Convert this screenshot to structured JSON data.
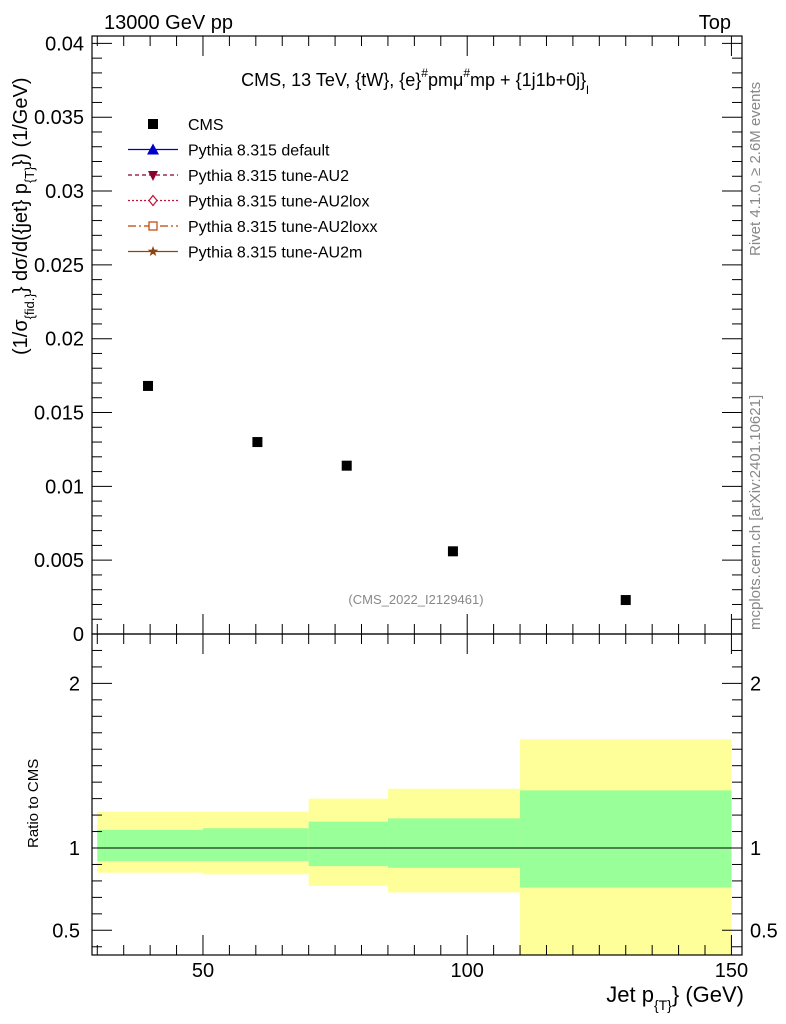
{
  "header": {
    "left": "13000 GeV pp",
    "right": "Top"
  },
  "side": {
    "rivet": "Rivet 4.1.0, ≥ 2.6M events",
    "mcplots": "mcplots.cern.ch [arXiv:2401.10621]"
  },
  "chart_data": {
    "type": "scatter",
    "title": "CMS, 13 TeV, {tW}, {e}#pmμ#mp + {1j1b+0j}_l",
    "title_parts": {
      "main": "CMS, 13 TeV, {tW}, {e}",
      "sup1": "#",
      "mid": "pmμ",
      "sup2": "#",
      "end": "mp + {1j1b+0j}",
      "sub": "l"
    },
    "analysis_id": "(CMS_2022_I2129461)",
    "xlabel": "Jet p_{T} (GeV)",
    "xlabel_parts": {
      "main": "Jet p",
      "sub": "{T}",
      "end": "} (GeV)"
    },
    "ylabel": "(1/σ_{fid.}) dσ/d({jet} p_{T}) (1/GeV)",
    "ylabel_parts": {
      "a": "(1/σ",
      "asub": "{fid.}",
      "b": "} dσ/d({jet} p",
      "bsub": "{T}",
      "c": "}) (1/GeV)"
    },
    "ratio_ylabel": "Ratio to CMS",
    "xlim": [
      29,
      152
    ],
    "ylim": [
      0,
      0.0405
    ],
    "ratio_ylim": [
      0.35,
      2.3
    ],
    "x_ticks": [
      50,
      100,
      150
    ],
    "x_tick_labels": [
      "50",
      "100",
      "150"
    ],
    "y_ticks": [
      0,
      0.005,
      0.01,
      0.015,
      0.02,
      0.025,
      0.03,
      0.035,
      0.04
    ],
    "y_tick_labels": [
      "0",
      "0.005",
      "0.01",
      "0.015",
      "0.02",
      "0.025",
      "0.03",
      "0.035",
      "0.04"
    ],
    "ratio_ticks": [
      0.5,
      1,
      2
    ],
    "ratio_tick_labels": [
      "0.5",
      "1",
      "2"
    ],
    "bins": [
      {
        "lo": 30,
        "hi": 50,
        "x": 39.6,
        "y": 0.0168,
        "stat_lo": 0.92,
        "stat_hi": 1.11,
        "tot_lo": 0.85,
        "tot_hi": 1.22
      },
      {
        "lo": 50,
        "hi": 70,
        "x": 60.3,
        "y": 0.013,
        "stat_lo": 0.92,
        "stat_hi": 1.12,
        "tot_lo": 0.84,
        "tot_hi": 1.22
      },
      {
        "lo": 70,
        "hi": 85,
        "x": 77.2,
        "y": 0.0114,
        "stat_lo": 0.89,
        "stat_hi": 1.16,
        "tot_lo": 0.77,
        "tot_hi": 1.3
      },
      {
        "lo": 85,
        "hi": 110,
        "x": 97.3,
        "y": 0.0056,
        "stat_lo": 0.88,
        "stat_hi": 1.18,
        "tot_lo": 0.73,
        "tot_hi": 1.36
      },
      {
        "lo": 110,
        "hi": 150,
        "x": 130.0,
        "y": 0.0023,
        "stat_lo": 0.76,
        "stat_hi": 1.35,
        "tot_lo": 0.35,
        "tot_hi": 1.66
      }
    ],
    "series": [
      {
        "name": "CMS",
        "marker": "square",
        "line": "none",
        "color": "#000000"
      },
      {
        "name": "Pythia 8.315 default",
        "marker": "triangle-up",
        "line": "solid",
        "color": "#0000cc"
      },
      {
        "name": "Pythia 8.315 tune-AU2",
        "marker": "triangle-down",
        "line": "dashed",
        "color": "#8b0032"
      },
      {
        "name": "Pythia 8.315 tune-AU2lox",
        "marker": "diamond-open",
        "line": "dotted",
        "color": "#c0143c"
      },
      {
        "name": "Pythia 8.315 tune-AU2loxx",
        "marker": "square-open",
        "line": "dashdot",
        "color": "#c04000"
      },
      {
        "name": "Pythia 8.315 tune-AU2m",
        "marker": "star",
        "line": "solid",
        "color": "#8b4513"
      }
    ],
    "colors": {
      "stat_band": "#99ff99",
      "total_band": "#ffff99",
      "watermark": "#888888"
    },
    "grid": false,
    "legend_position": "top-left"
  }
}
